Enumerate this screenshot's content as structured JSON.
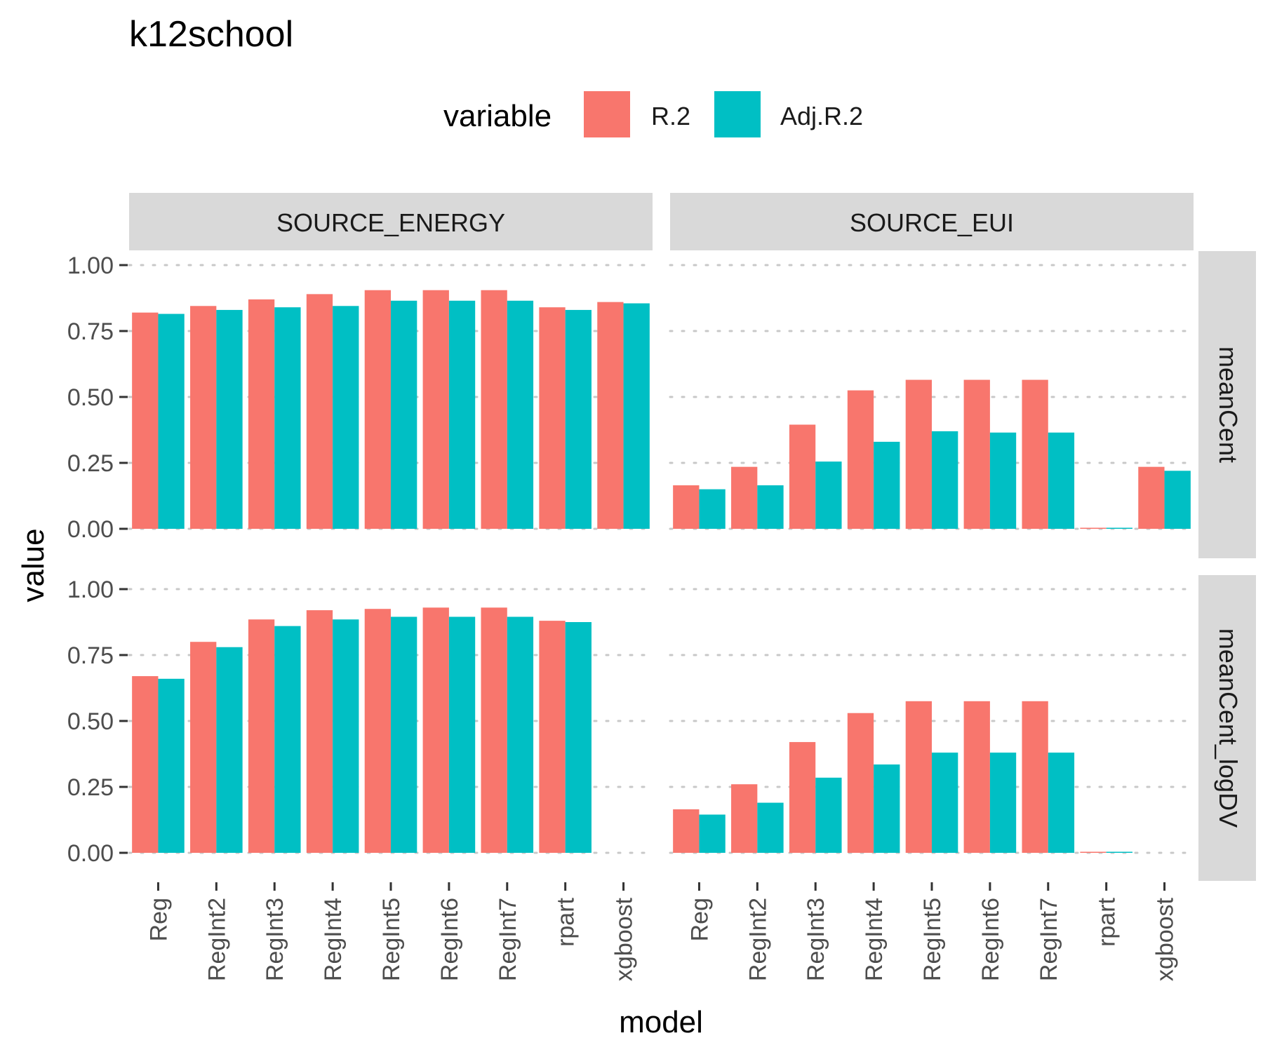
{
  "chart_data": {
    "type": "bar",
    "title": "k12school",
    "xlabel": "model",
    "ylabel": "value",
    "ylim": [
      0,
      1
    ],
    "yticks": [
      "0.00",
      "0.25",
      "0.50",
      "0.75",
      "1.00"
    ],
    "categories": [
      "Reg",
      "RegInt2",
      "RegInt3",
      "RegInt4",
      "RegInt5",
      "RegInt6",
      "RegInt7",
      "rpart",
      "xgboost"
    ],
    "legend": {
      "title": "variable",
      "placement": "top",
      "entries": [
        {
          "name": "R.2",
          "color": "#F8766D"
        },
        {
          "name": "Adj.R.2",
          "color": "#00BFC4"
        }
      ]
    },
    "facet_columns": [
      "SOURCE_ENERGY",
      "SOURCE_EUI"
    ],
    "facet_rows": [
      "meanCent",
      "meanCent_logDV"
    ],
    "grid": true,
    "panels": [
      {
        "col": "SOURCE_ENERGY",
        "row": "meanCent",
        "series": [
          {
            "name": "R.2",
            "values": [
              0.82,
              0.845,
              0.87,
              0.89,
              0.905,
              0.905,
              0.905,
              0.84,
              0.86
            ]
          },
          {
            "name": "Adj.R.2",
            "values": [
              0.815,
              0.83,
              0.84,
              0.845,
              0.865,
              0.865,
              0.865,
              0.83,
              0.855
            ]
          }
        ]
      },
      {
        "col": "SOURCE_EUI",
        "row": "meanCent",
        "series": [
          {
            "name": "R.2",
            "values": [
              0.165,
              0.235,
              0.395,
              0.525,
              0.565,
              0.565,
              0.565,
              0.002,
              0.235
            ]
          },
          {
            "name": "Adj.R.2",
            "values": [
              0.15,
              0.165,
              0.255,
              0.33,
              0.37,
              0.365,
              0.365,
              0.002,
              0.22
            ]
          }
        ]
      },
      {
        "col": "SOURCE_ENERGY",
        "row": "meanCent_logDV",
        "series": [
          {
            "name": "R.2",
            "values": [
              0.67,
              0.8,
              0.885,
              0.92,
              0.925,
              0.93,
              0.93,
              0.88,
              null
            ]
          },
          {
            "name": "Adj.R.2",
            "values": [
              0.66,
              0.78,
              0.86,
              0.885,
              0.895,
              0.895,
              0.895,
              0.875,
              null
            ]
          }
        ]
      },
      {
        "col": "SOURCE_EUI",
        "row": "meanCent_logDV",
        "series": [
          {
            "name": "R.2",
            "values": [
              0.165,
              0.26,
              0.42,
              0.53,
              0.575,
              0.575,
              0.575,
              0.002,
              null
            ]
          },
          {
            "name": "Adj.R.2",
            "values": [
              0.145,
              0.19,
              0.285,
              0.335,
              0.38,
              0.38,
              0.38,
              0.002,
              null
            ]
          }
        ]
      }
    ]
  }
}
